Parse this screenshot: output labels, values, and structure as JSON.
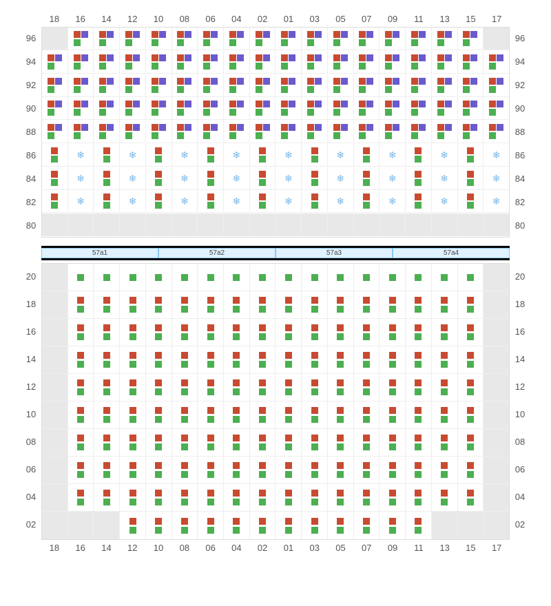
{
  "colors": {
    "red": "#c84b31",
    "green": "#4caf50",
    "purple": "#6a5acd",
    "snow": "#7bb8e8",
    "empty_bg": "#e8e8e8",
    "border": "#eeeeee",
    "outer_border": "#dddddd",
    "label": "#555555"
  },
  "column_labels": [
    "18",
    "16",
    "14",
    "12",
    "10",
    "08",
    "06",
    "04",
    "02",
    "01",
    "03",
    "05",
    "07",
    "09",
    "11",
    "13",
    "15",
    "17"
  ],
  "upper": {
    "row_labels": [
      "96",
      "94",
      "92",
      "90",
      "88",
      "86",
      "84",
      "82",
      "80"
    ],
    "rows": [
      {
        "label": "96",
        "cells": [
          "empty",
          "rgp",
          "rgp",
          "rgp",
          "rgp",
          "rgp",
          "rgp",
          "rgp",
          "rgp",
          "rgp",
          "rgp",
          "rgp",
          "rgp",
          "rgp",
          "rgp",
          "rgp",
          "rgp",
          "empty"
        ]
      },
      {
        "label": "94",
        "cells": [
          "rgp",
          "rgp",
          "rgp",
          "rgp",
          "rgp",
          "rgp",
          "rgp",
          "rgp",
          "rgp",
          "rgp",
          "rgp",
          "rgp",
          "rgp",
          "rgp",
          "rgp",
          "rgp",
          "rgp",
          "rgp"
        ]
      },
      {
        "label": "92",
        "cells": [
          "rgp",
          "rgp",
          "rgp",
          "rgp",
          "rgp",
          "rgp",
          "rgp",
          "rgp",
          "rgp",
          "rgp",
          "rgp",
          "rgp",
          "rgp",
          "rgp",
          "rgp",
          "rgp",
          "rgp",
          "rgp"
        ]
      },
      {
        "label": "90",
        "cells": [
          "rgp",
          "rgp",
          "rgp",
          "rgp",
          "rgp",
          "rgp",
          "rgp",
          "rgp",
          "rgp",
          "rgp",
          "rgp",
          "rgp",
          "rgp",
          "rgp",
          "rgp",
          "rgp",
          "rgp",
          "rgp"
        ]
      },
      {
        "label": "88",
        "cells": [
          "rgp",
          "rgp",
          "rgp",
          "rgp",
          "rgp",
          "rgp",
          "rgp",
          "rgp",
          "rgp",
          "rgp",
          "rgp",
          "rgp",
          "rgp",
          "rgp",
          "rgp",
          "rgp",
          "rgp",
          "rgp"
        ]
      },
      {
        "label": "86",
        "cells": [
          "rg",
          "snow",
          "rg",
          "snow",
          "rg",
          "snow",
          "rg",
          "snow",
          "rg",
          "snow",
          "rg",
          "snow",
          "rg",
          "snow",
          "rg",
          "snow",
          "rg",
          "snow"
        ]
      },
      {
        "label": "84",
        "cells": [
          "rg",
          "snow",
          "rg",
          "snow",
          "rg",
          "snow",
          "rg",
          "snow",
          "rg",
          "snow",
          "rg",
          "snow",
          "rg",
          "snow",
          "rg",
          "snow",
          "rg",
          "snow"
        ]
      },
      {
        "label": "82",
        "cells": [
          "rg",
          "snow",
          "rg",
          "snow",
          "rg",
          "snow",
          "rg",
          "snow",
          "rg",
          "snow",
          "rg",
          "snow",
          "rg",
          "snow",
          "rg",
          "snow",
          "rg",
          "snow"
        ]
      },
      {
        "label": "80",
        "cells": [
          "empty",
          "empty",
          "empty",
          "empty",
          "empty",
          "empty",
          "empty",
          "empty",
          "empty",
          "empty",
          "empty",
          "empty",
          "empty",
          "empty",
          "empty",
          "empty",
          "empty",
          "empty"
        ]
      }
    ]
  },
  "bars": [
    "57a1",
    "57a2",
    "57a3",
    "57a4"
  ],
  "lower": {
    "row_labels": [
      "20",
      "18",
      "16",
      "14",
      "12",
      "10",
      "08",
      "06",
      "04",
      "02"
    ],
    "rows": [
      {
        "label": "20",
        "cells": [
          "empty",
          "g",
          "g",
          "g",
          "g",
          "g",
          "g",
          "g",
          "g",
          "g",
          "g",
          "g",
          "g",
          "g",
          "g",
          "g",
          "g",
          "empty"
        ]
      },
      {
        "label": "18",
        "cells": [
          "empty",
          "rg",
          "rg",
          "rg",
          "rg",
          "rg",
          "rg",
          "rg",
          "rg",
          "rg",
          "rg",
          "rg",
          "rg",
          "rg",
          "rg",
          "rg",
          "rg",
          "empty"
        ]
      },
      {
        "label": "16",
        "cells": [
          "empty",
          "rg",
          "rg",
          "rg",
          "rg",
          "rg",
          "rg",
          "rg",
          "rg",
          "rg",
          "rg",
          "rg",
          "rg",
          "rg",
          "rg",
          "rg",
          "rg",
          "empty"
        ]
      },
      {
        "label": "14",
        "cells": [
          "empty",
          "rg",
          "rg",
          "rg",
          "rg",
          "rg",
          "rg",
          "rg",
          "rg",
          "rg",
          "rg",
          "rg",
          "rg",
          "rg",
          "rg",
          "rg",
          "rg",
          "empty"
        ]
      },
      {
        "label": "12",
        "cells": [
          "empty",
          "rg",
          "rg",
          "rg",
          "rg",
          "rg",
          "rg",
          "rg",
          "rg",
          "rg",
          "rg",
          "rg",
          "rg",
          "rg",
          "rg",
          "rg",
          "rg",
          "empty"
        ]
      },
      {
        "label": "10",
        "cells": [
          "empty",
          "rg",
          "rg",
          "rg",
          "rg",
          "rg",
          "rg",
          "rg",
          "rg",
          "rg",
          "rg",
          "rg",
          "rg",
          "rg",
          "rg",
          "rg",
          "rg",
          "empty"
        ]
      },
      {
        "label": "08",
        "cells": [
          "empty",
          "rg",
          "rg",
          "rg",
          "rg",
          "rg",
          "rg",
          "rg",
          "rg",
          "rg",
          "rg",
          "rg",
          "rg",
          "rg",
          "rg",
          "rg",
          "rg",
          "empty"
        ]
      },
      {
        "label": "06",
        "cells": [
          "empty",
          "rg",
          "rg",
          "rg",
          "rg",
          "rg",
          "rg",
          "rg",
          "rg",
          "rg",
          "rg",
          "rg",
          "rg",
          "rg",
          "rg",
          "rg",
          "rg",
          "empty"
        ]
      },
      {
        "label": "04",
        "cells": [
          "empty",
          "rg",
          "rg",
          "rg",
          "rg",
          "rg",
          "rg",
          "rg",
          "rg",
          "rg",
          "rg",
          "rg",
          "rg",
          "rg",
          "rg",
          "rg",
          "rg",
          "empty"
        ]
      },
      {
        "label": "02",
        "cells": [
          "empty",
          "empty",
          "empty",
          "rg",
          "rg",
          "rg",
          "rg",
          "rg",
          "rg",
          "rg",
          "rg",
          "rg",
          "rg",
          "rg",
          "rg",
          "empty",
          "empty",
          "empty"
        ]
      }
    ]
  }
}
